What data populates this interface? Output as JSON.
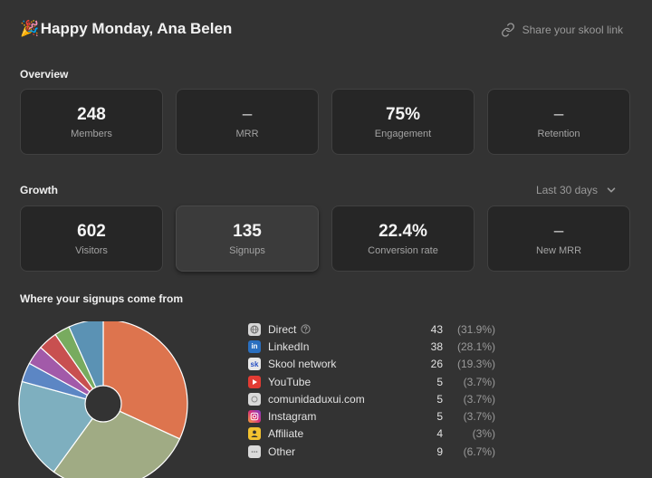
{
  "header": {
    "emoji": "🎉",
    "greeting": "Happy Monday, Ana Belen",
    "share_label": "Share your skool link"
  },
  "overview": {
    "title": "Overview",
    "cards": [
      {
        "value": "248",
        "label": "Members"
      },
      {
        "value": "–",
        "label": "MRR"
      },
      {
        "value": "75%",
        "label": "Engagement"
      },
      {
        "value": "–",
        "label": "Retention"
      }
    ]
  },
  "growth": {
    "title": "Growth",
    "range": "Last 30 days",
    "cards": [
      {
        "value": "602",
        "label": "Visitors"
      },
      {
        "value": "135",
        "label": "Signups"
      },
      {
        "value": "22.4%",
        "label": "Conversion rate"
      },
      {
        "value": "–",
        "label": "New MRR"
      }
    ]
  },
  "signups": {
    "title": "Where your signups come from",
    "sources": [
      {
        "name": "Direct",
        "count": "43",
        "pct": "(31.9%)",
        "icon": "globe-icon",
        "color": "#dd744e"
      },
      {
        "name": "LinkedIn",
        "count": "38",
        "pct": "(28.1%)",
        "icon": "linkedin-icon",
        "color": "#a0ab84"
      },
      {
        "name": "Skool network",
        "count": "26",
        "pct": "(19.3%)",
        "icon": "skool-icon",
        "color": "#7eafbf"
      },
      {
        "name": "YouTube",
        "count": "5",
        "pct": "(3.7%)",
        "icon": "youtube-icon",
        "color": "#5c86c4"
      },
      {
        "name": "comunidaduxui.com",
        "count": "5",
        "pct": "(3.7%)",
        "icon": "website-icon",
        "color": "#a25aa9"
      },
      {
        "name": "Instagram",
        "count": "5",
        "pct": "(3.7%)",
        "icon": "instagram-icon",
        "color": "#c85050"
      },
      {
        "name": "Affiliate",
        "count": "4",
        "pct": "(3%)",
        "icon": "affiliate-icon",
        "color": "#78ab5f"
      },
      {
        "name": "Other",
        "count": "9",
        "pct": "(6.7%)",
        "icon": "more-icon",
        "color": "#5b92b4"
      }
    ]
  },
  "chart_data": {
    "type": "pie",
    "categories": [
      "Direct",
      "LinkedIn",
      "Skool network",
      "YouTube",
      "comunidaduxui.com",
      "Instagram",
      "Affiliate",
      "Other"
    ],
    "values": [
      43,
      38,
      26,
      5,
      5,
      5,
      4,
      9
    ]
  }
}
